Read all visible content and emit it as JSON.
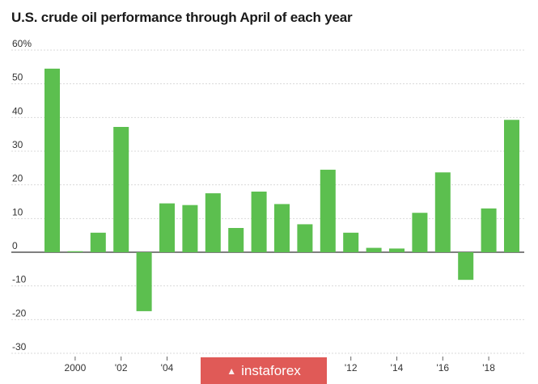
{
  "chart_data": {
    "type": "bar",
    "title": "U.S. crude oil performance through April of each year",
    "xlabel": "",
    "ylabel": "",
    "ylim": [
      -30,
      60
    ],
    "yticks": [
      60,
      50,
      40,
      30,
      20,
      10,
      0,
      -10,
      -20,
      -30
    ],
    "ytick_labels": [
      "60%",
      "50",
      "40",
      "30",
      "20",
      "10",
      "0",
      "-10",
      "-20",
      "-30"
    ],
    "categories": [
      "1999",
      "2000",
      "2001",
      "2002",
      "2003",
      "2004",
      "2005",
      "2006",
      "2007",
      "2008",
      "2009",
      "2010",
      "2011",
      "2012",
      "2013",
      "2014",
      "2015",
      "2016",
      "2017",
      "2018",
      "2019"
    ],
    "values": [
      54.5,
      0.3,
      5.8,
      37.2,
      -17.5,
      14.5,
      14.0,
      17.5,
      7.2,
      18.0,
      14.3,
      8.3,
      24.5,
      5.8,
      1.3,
      1.1,
      11.7,
      23.7,
      -8.2,
      13.0,
      39.3
    ],
    "xtick_labels": [
      {
        "index": 1,
        "label": "2000"
      },
      {
        "index": 3,
        "label": "'02"
      },
      {
        "index": 5,
        "label": "'04"
      },
      {
        "index": 13,
        "label": "'12"
      },
      {
        "index": 15,
        "label": "'14"
      },
      {
        "index": 17,
        "label": "'16"
      },
      {
        "index": 19,
        "label": "'18"
      }
    ],
    "bar_color": "#5cbf4f",
    "grid": true
  },
  "watermark": {
    "text": "instaforex",
    "icon": "instaforex-logo-icon",
    "color": "#e05a57"
  }
}
